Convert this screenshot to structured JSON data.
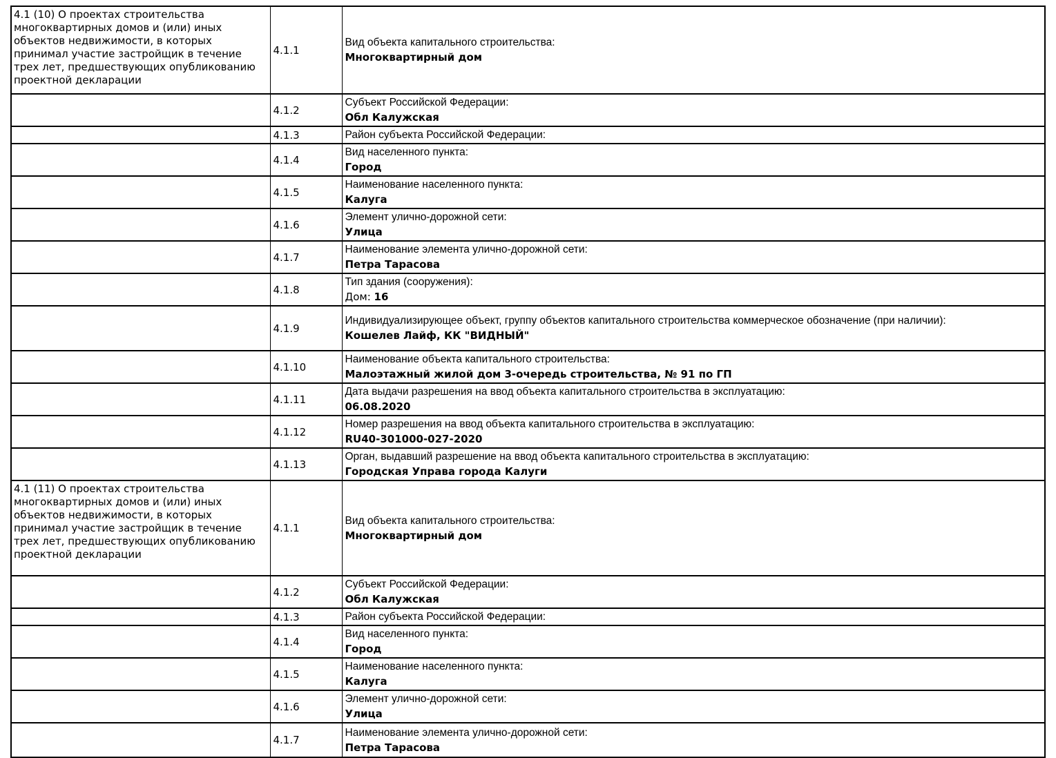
{
  "colors": {
    "background": "#ffffff",
    "text": "#000000",
    "border": "#000000"
  },
  "table": {
    "sections": [
      {
        "header": "4.1 (10) О проектах строительства многоквартирных домов и (или) иных объектов недвижимости, в которых принимал участие застройщик в течение трех лет, предшествующих опубликованию проектной декларации",
        "rows": [
          {
            "num": "4.1.1",
            "label": "Вид объекта капитального строительства:",
            "value": "Многоквартирный дом"
          },
          {
            "num": "4.1.2",
            "label": "Субъект Российской Федерации:",
            "value": "Обл Калужская"
          },
          {
            "num": "4.1.3",
            "label": "Район субъекта Российской Федерации:",
            "value": ""
          },
          {
            "num": "4.1.4",
            "label": "Вид населенного пункта:",
            "value": "Город"
          },
          {
            "num": "4.1.5",
            "label": "Наименование населенного пункта:",
            "value": "Калуга"
          },
          {
            "num": "4.1.6",
            "label": "Элемент улично-дорожной сети:",
            "value": "Улица"
          },
          {
            "num": "4.1.7",
            "label": "Наименование элемента улично-дорожной сети:",
            "value": "Петра Тарасова"
          },
          {
            "num": "4.1.8",
            "label": "Тип здания (сооружения):",
            "value_prefix": "Дом: ",
            "value": "16"
          },
          {
            "num": "4.1.9",
            "label": "Индивидуализирующее объект, группу объектов капитального строительства коммерческое обозначение (при наличии):",
            "value": "Кошелев Лайф, КК \"ВИДНЫЙ\""
          },
          {
            "num": "4.1.10",
            "label": "Наименование объекта капитального строительства:",
            "value": "Малоэтажный жилой дом 3-очередь строительства, № 91 по ГП"
          },
          {
            "num": "4.1.11",
            "label": "Дата выдачи разрешения на ввод объекта капитального строительства в эксплуатацию:",
            "value": "06.08.2020"
          },
          {
            "num": "4.1.12",
            "label": "Номер разрешения на ввод объекта капитального строительства в эксплуатацию:",
            "value": "RU40-301000-027-2020"
          },
          {
            "num": "4.1.13",
            "label": "Орган, выдавший разрешение на ввод объекта капитального строительства в эксплуатацию:",
            "value": "Городская Управа города Калуги"
          }
        ]
      },
      {
        "header": "4.1 (11) О проектах строительства многоквартирных домов и (или) иных объектов недвижимости, в которых принимал участие застройщик в течение трех лет, предшествующих опубликованию проектной декларации",
        "rows": [
          {
            "num": "4.1.1",
            "label": "Вид объекта капитального строительства:",
            "value": "Многоквартирный дом"
          },
          {
            "num": "4.1.2",
            "label": "Субъект Российской Федерации:",
            "value": "Обл Калужская"
          },
          {
            "num": "4.1.3",
            "label": "Район субъекта Российской Федерации:",
            "value": ""
          },
          {
            "num": "4.1.4",
            "label": "Вид населенного пункта:",
            "value": "Город"
          },
          {
            "num": "4.1.5",
            "label": "Наименование населенного пункта:",
            "value": "Калуга"
          },
          {
            "num": "4.1.6",
            "label": "Элемент улично-дорожной сети:",
            "value": "Улица"
          },
          {
            "num": "4.1.7",
            "label": "Наименование элемента улично-дорожной сети:",
            "value": "Петра Тарасова"
          }
        ]
      }
    ]
  }
}
